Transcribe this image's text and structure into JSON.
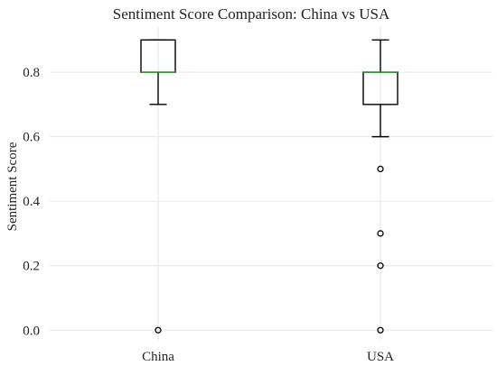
{
  "chart_data": {
    "type": "box",
    "title": "Sentiment Score Comparison: China vs USA",
    "xlabel": "",
    "ylabel": "Sentiment Score",
    "ylim": [
      -0.03,
      0.94
    ],
    "yticks": [
      0.0,
      0.2,
      0.4,
      0.6,
      0.8
    ],
    "ytick_labels": [
      "0.0",
      "0.2",
      "0.4",
      "0.6",
      "0.8"
    ],
    "grid": true,
    "categories": [
      "China",
      "USA"
    ],
    "boxes": [
      {
        "category": "China",
        "whisker_low": 0.7,
        "q1": 0.8,
        "median": 0.8,
        "q3": 0.9,
        "whisker_high": 0.9,
        "outliers": [
          0.0
        ]
      },
      {
        "category": "USA",
        "whisker_low": 0.6,
        "q1": 0.7,
        "median": 0.8,
        "q3": 0.8,
        "whisker_high": 0.9,
        "outliers": [
          0.5,
          0.3,
          0.2,
          0.0
        ]
      }
    ],
    "colors": {
      "box": "#000000",
      "median": "#2ca02c",
      "grid": "#e6e6e6"
    }
  }
}
